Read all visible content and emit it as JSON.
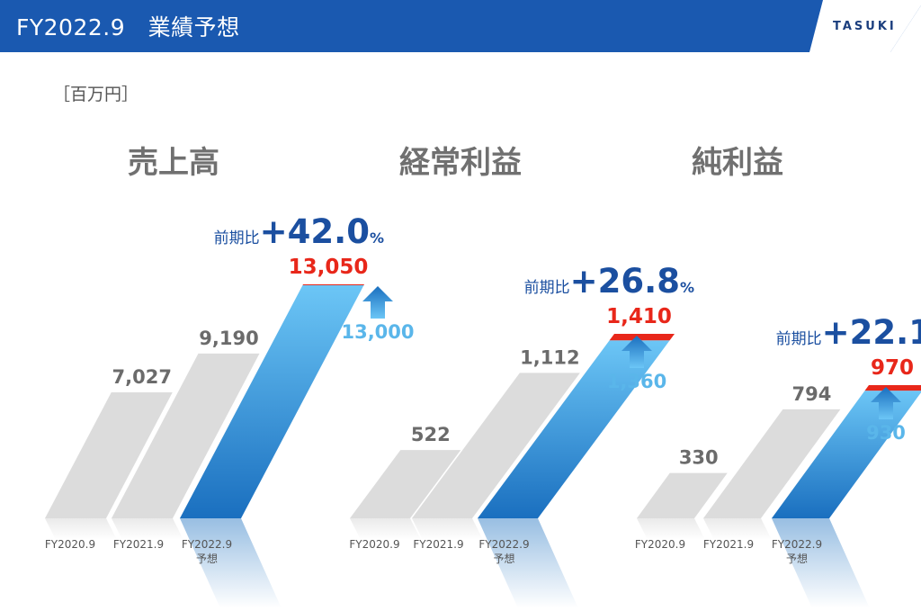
{
  "header": {
    "title": "FY2022.9　業績予想",
    "logo": "TASUKI",
    "bar_color": "#1a59b0",
    "logo_color": "#1b3e7e"
  },
  "unit_label": "［百万円］",
  "colors": {
    "actual": "#dcdcdc",
    "forecast_top": "#6cc6f6",
    "forecast_bottom": "#1a6fbf",
    "increase": "#e8271a",
    "revised_label": "#5ab6ea",
    "yoy": "#1b4fa0",
    "value_gray": "#6b6b6b"
  },
  "chart_data": [
    {
      "type": "bar",
      "title": "売上高",
      "categories": [
        "FY2020.9",
        "FY2021.9",
        "FY2022.9"
      ],
      "category_sublabels": [
        "",
        "",
        "予想"
      ],
      "values": [
        7027,
        9190,
        13050
      ],
      "value_labels": [
        "7,027",
        "9,190",
        "13,050"
      ],
      "previous_forecast": 13000,
      "previous_forecast_label": "13,000",
      "yoy_prefix": "前期比",
      "yoy_value": "+42.0",
      "yoy_unit": "%"
    },
    {
      "type": "bar",
      "title": "経常利益",
      "categories": [
        "FY2020.9",
        "FY2021.9",
        "FY2022.9"
      ],
      "category_sublabels": [
        "",
        "",
        "予想"
      ],
      "values": [
        522,
        1112,
        1410
      ],
      "value_labels": [
        "522",
        "1,112",
        "1,410"
      ],
      "previous_forecast": 1360,
      "previous_forecast_label": "1,360",
      "yoy_prefix": "前期比",
      "yoy_value": "+26.8",
      "yoy_unit": "%"
    },
    {
      "type": "bar",
      "title": "純利益",
      "categories": [
        "FY2020.9",
        "FY2021.9",
        "FY2022.9"
      ],
      "category_sublabels": [
        "",
        "",
        "予想"
      ],
      "values": [
        330,
        794,
        970
      ],
      "value_labels": [
        "330",
        "794",
        "970"
      ],
      "previous_forecast": 930,
      "previous_forecast_label": "930",
      "yoy_prefix": "前期比",
      "yoy_value": "+22.1",
      "yoy_unit": "%"
    }
  ]
}
